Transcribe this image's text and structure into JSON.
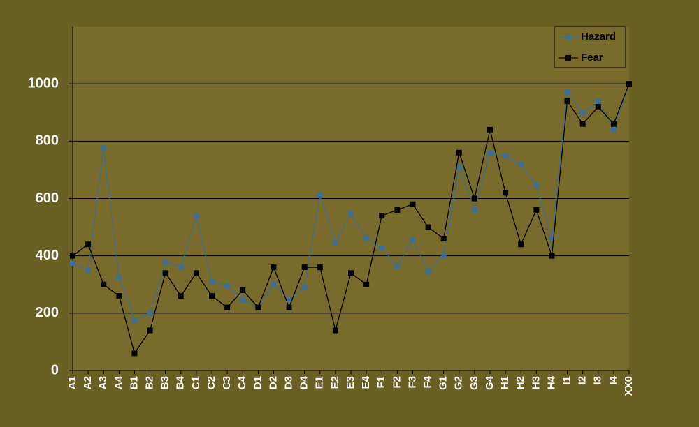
{
  "chart_data": {
    "type": "line",
    "categories": [
      "A1",
      "A2",
      "A3",
      "A4",
      "B1",
      "B2",
      "B3",
      "B4",
      "C1",
      "C2",
      "C3",
      "C4",
      "D1",
      "D2",
      "D3",
      "D4",
      "E1",
      "E2",
      "E3",
      "E4",
      "F1",
      "F2",
      "F3",
      "F4",
      "G1",
      "G2",
      "G3",
      "G4",
      "H1",
      "H2",
      "H3",
      "H4",
      "I1",
      "I2",
      "I3",
      "I4",
      "XX0"
    ],
    "series": [
      {
        "name": "Hazard",
        "color": "#3d6f91",
        "values": [
          375,
          350,
          776,
          326,
          175,
          200,
          377,
          360,
          538,
          311,
          294,
          246,
          221,
          302,
          246,
          290,
          611,
          445,
          547,
          462,
          428,
          365,
          457,
          345,
          401,
          708,
          560,
          759,
          749,
          718,
          645,
          460,
          971,
          898,
          939,
          842,
          1000
        ]
      },
      {
        "name": "Fear",
        "color": "#000000",
        "values": [
          400,
          440,
          300,
          260,
          60,
          140,
          340,
          260,
          340,
          260,
          220,
          280,
          220,
          360,
          220,
          360,
          360,
          140,
          340,
          300,
          540,
          560,
          580,
          500,
          460,
          760,
          600,
          840,
          620,
          440,
          560,
          400,
          940,
          860,
          920,
          860,
          1000
        ]
      }
    ],
    "ylim": [
      0,
      1200
    ],
    "yticks": [
      0,
      200,
      400,
      600,
      800,
      1000
    ],
    "grid": true,
    "legend": "upper right"
  }
}
